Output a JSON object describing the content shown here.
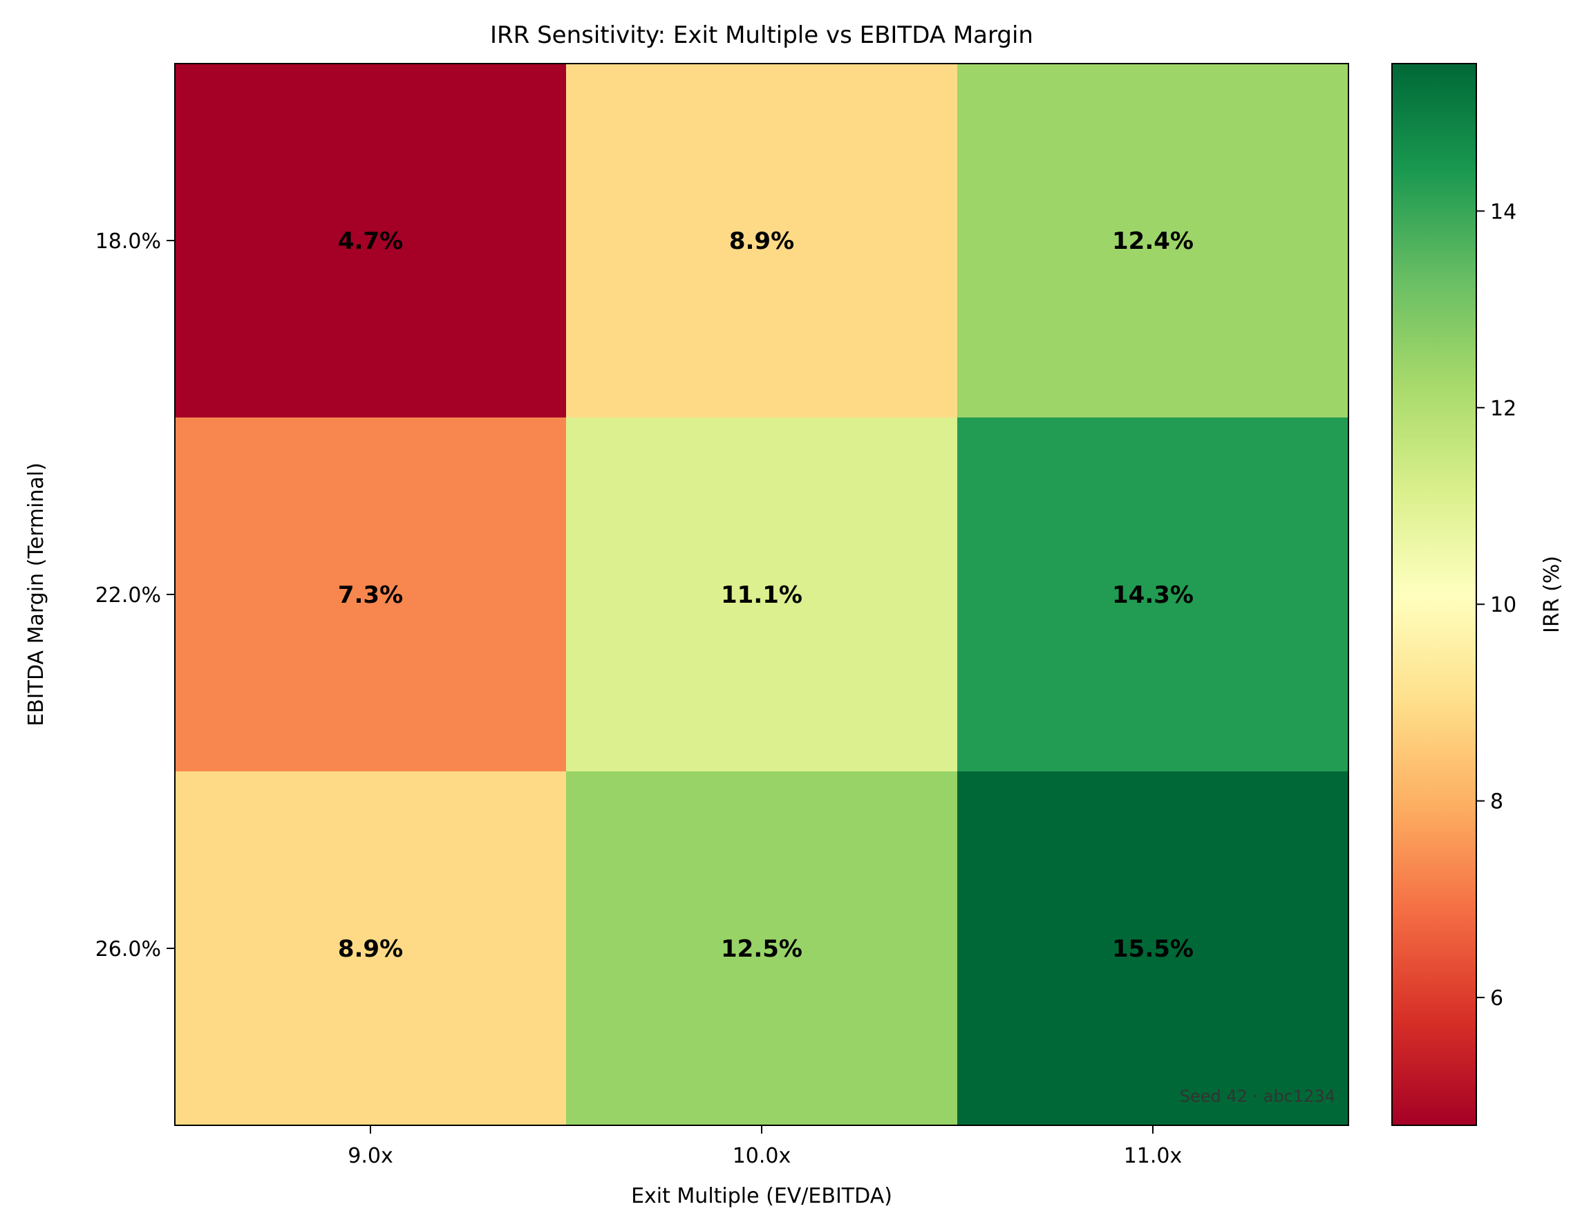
{
  "chart_data": {
    "type": "heatmap",
    "title": "IRR Sensitivity: Exit Multiple vs EBITDA Margin",
    "xlabel": "Exit Multiple (EV/EBITDA)",
    "ylabel": "EBITDA Margin (Terminal)",
    "x_categories": [
      "9.0x",
      "10.0x",
      "11.0x"
    ],
    "y_categories": [
      "18.0%",
      "22.0%",
      "26.0%"
    ],
    "values": [
      [
        4.7,
        8.9,
        12.4
      ],
      [
        7.3,
        11.1,
        14.3
      ],
      [
        8.9,
        12.5,
        15.5
      ]
    ],
    "cell_labels": [
      [
        "4.7%",
        "8.9%",
        "12.4%"
      ],
      [
        "7.3%",
        "11.1%",
        "14.3%"
      ],
      [
        "8.9%",
        "12.5%",
        "15.5%"
      ]
    ],
    "colormap": "RdYlGn",
    "colorbar": {
      "label": "IRR (%)",
      "range": [
        4.7,
        15.5
      ],
      "ticks": [
        6,
        8,
        10,
        12,
        14
      ],
      "tick_labels": [
        "6",
        "8",
        "10",
        "12",
        "14"
      ]
    },
    "grid": false,
    "annotation": "Seed 42 · abc1234"
  }
}
